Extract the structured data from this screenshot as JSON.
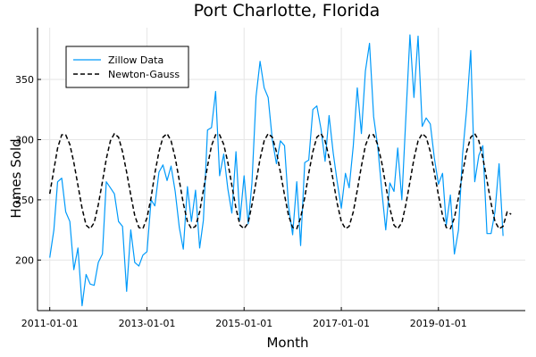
{
  "chart_data": {
    "type": "line",
    "title": "Port Charlotte, Florida",
    "xlabel": "Month",
    "ylabel": "Homes Sold",
    "x_range": [
      "2010-10-01",
      "2020-10-15"
    ],
    "ylim": [
      158,
      393
    ],
    "xticks": [
      "2011-01-01",
      "2013-01-01",
      "2015-01-01",
      "2017-01-01",
      "2019-01-01"
    ],
    "yticks": [
      200,
      250,
      300,
      350
    ],
    "grid": true,
    "legend_position": "top-left",
    "colors": {
      "zillow": "#009AFA",
      "newton": "#000000"
    },
    "series": [
      {
        "name": "Zillow Data",
        "style": "solid",
        "start": "2011-01",
        "values": [
          202,
          225,
          265,
          268,
          240,
          232,
          192,
          210,
          162,
          188,
          180,
          179,
          198,
          205,
          265,
          260,
          255,
          232,
          228,
          174,
          225,
          198,
          195,
          204,
          207,
          250,
          245,
          273,
          279,
          266,
          278,
          257,
          227,
          209,
          261,
          232,
          258,
          210,
          233,
          308,
          310,
          340,
          270,
          288,
          259,
          239,
          290,
          233,
          270,
          230,
          264,
          336,
          365,
          343,
          335,
          300,
          280,
          299,
          295,
          245,
          221,
          265,
          212,
          281,
          283,
          325,
          328,
          309,
          282,
          320,
          289,
          265,
          243,
          272,
          260,
          295,
          343,
          305,
          357,
          380,
          319,
          295,
          258,
          225,
          264,
          257,
          293,
          250,
          318,
          387,
          335,
          386,
          311,
          318,
          313,
          285,
          263,
          272,
          229,
          254,
          205,
          225,
          287,
          325,
          374,
          265,
          287,
          295,
          222,
          222,
          240,
          280,
          220
        ]
      },
      {
        "name": "Newton-Gauss",
        "style": "dashed",
        "start": "2011-01",
        "values": [
          255,
          275,
          293,
          304,
          304,
          296,
          281,
          262,
          243,
          229,
          226,
          231,
          246,
          265,
          284,
          299,
          305,
          302,
          290,
          273,
          254,
          237,
          227,
          226,
          235,
          252,
          272,
          290,
          302,
          305,
          299,
          285,
          266,
          247,
          232,
          226,
          228,
          240,
          258,
          278,
          295,
          304,
          304,
          296,
          281,
          262,
          243,
          229,
          226,
          231,
          246,
          265,
          284,
          299,
          305,
          302,
          290,
          273,
          254,
          237,
          227,
          226,
          235,
          252,
          272,
          290,
          302,
          305,
          299,
          285,
          266,
          247,
          232,
          226,
          228,
          240,
          258,
          278,
          295,
          304,
          304,
          296,
          281,
          262,
          243,
          229,
          226,
          231,
          246,
          265,
          284,
          299,
          305,
          302,
          290,
          273,
          254,
          237,
          227,
          226,
          235,
          252,
          272,
          290,
          302,
          305,
          299,
          285,
          266,
          247,
          232,
          226,
          228,
          240,
          238
        ]
      }
    ]
  }
}
